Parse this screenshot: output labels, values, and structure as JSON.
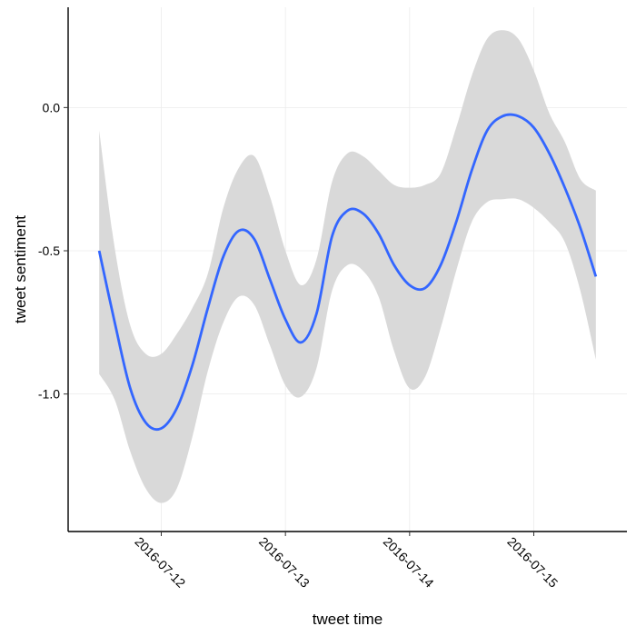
{
  "chart_data": {
    "type": "line",
    "title": "",
    "xlabel": "tweet time",
    "ylabel": "tweet sentiment",
    "x_tick_labels": [
      "2016-07-12",
      "2016-07-13",
      "2016-07-14",
      "2016-07-15"
    ],
    "y_tick_labels": [
      "0.0",
      "-0.5",
      "-1.0"
    ],
    "y_ticks": [
      0.0,
      -0.5,
      -1.0
    ],
    "x_ticks": [
      "2016-07-12T00:00",
      "2016-07-13T00:00",
      "2016-07-14T00:00",
      "2016-07-15T00:00"
    ],
    "xlim": [
      "2016-07-11T06:00",
      "2016-07-15T18:00"
    ],
    "ylim": [
      -1.48,
      0.35
    ],
    "grid": true,
    "legend": "none",
    "colors": {
      "line": "#3366FF",
      "ribbon": "#D9D9D9",
      "grid": "#EBEBEB",
      "axis": "#000000"
    },
    "series": [
      {
        "x": [
          "2016-07-11T12:00",
          "2016-07-11T15:00",
          "2016-07-11T18:00",
          "2016-07-11T21:00",
          "2016-07-12T00:00",
          "2016-07-12T03:00",
          "2016-07-12T06:00",
          "2016-07-12T09:00",
          "2016-07-12T12:00",
          "2016-07-12T15:00",
          "2016-07-12T18:00",
          "2016-07-12T21:00",
          "2016-07-13T00:00",
          "2016-07-13T03:00",
          "2016-07-13T06:00",
          "2016-07-13T09:00",
          "2016-07-13T12:00",
          "2016-07-13T15:00",
          "2016-07-13T18:00",
          "2016-07-13T21:00",
          "2016-07-14T00:00",
          "2016-07-14T03:00",
          "2016-07-14T06:00",
          "2016-07-14T09:00",
          "2016-07-14T12:00",
          "2016-07-14T15:00",
          "2016-07-14T18:00",
          "2016-07-14T21:00",
          "2016-07-15T00:00",
          "2016-07-15T03:00",
          "2016-07-15T06:00",
          "2016-07-15T09:00",
          "2016-07-15T12:00"
        ],
        "y": [
          -0.5,
          -0.75,
          -0.98,
          -1.1,
          -1.12,
          -1.05,
          -0.9,
          -0.7,
          -0.52,
          -0.43,
          -0.46,
          -0.6,
          -0.74,
          -0.82,
          -0.72,
          -0.45,
          -0.36,
          -0.37,
          -0.44,
          -0.55,
          -0.62,
          -0.63,
          -0.55,
          -0.4,
          -0.22,
          -0.08,
          -0.03,
          -0.03,
          -0.07,
          -0.16,
          -0.28,
          -0.42,
          -0.59
        ],
        "lower": [
          -0.93,
          -1.02,
          -1.2,
          -1.33,
          -1.38,
          -1.33,
          -1.15,
          -0.92,
          -0.75,
          -0.66,
          -0.69,
          -0.83,
          -0.97,
          -1.01,
          -0.91,
          -0.64,
          -0.55,
          -0.57,
          -0.66,
          -0.85,
          -0.98,
          -0.94,
          -0.77,
          -0.57,
          -0.4,
          -0.33,
          -0.32,
          -0.32,
          -0.35,
          -0.4,
          -0.47,
          -0.64,
          -0.88
        ],
        "upper": [
          -0.08,
          -0.49,
          -0.76,
          -0.86,
          -0.86,
          -0.79,
          -0.7,
          -0.58,
          -0.35,
          -0.21,
          -0.17,
          -0.31,
          -0.5,
          -0.62,
          -0.53,
          -0.26,
          -0.16,
          -0.17,
          -0.22,
          -0.27,
          -0.28,
          -0.27,
          -0.23,
          -0.07,
          0.11,
          0.24,
          0.27,
          0.24,
          0.13,
          -0.02,
          -0.12,
          -0.25,
          -0.29
        ]
      }
    ]
  }
}
